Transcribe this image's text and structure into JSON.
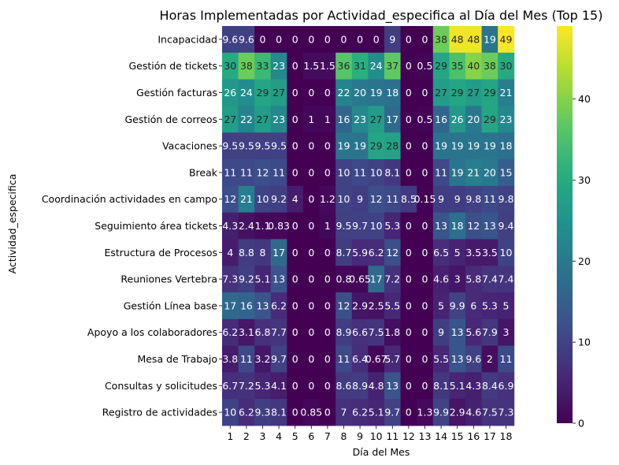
{
  "chart_data": {
    "type": "heatmap",
    "title": "Horas Implementadas por Actividad_especifica al Día del Mes (Top 15)",
    "xlabel": "Día del Mes",
    "ylabel": "Actividad_especifica",
    "colormap": "viridis",
    "vmin": 0,
    "vmax": 49,
    "colorbar_ticks": [
      "0",
      "10",
      "20",
      "30",
      "40"
    ],
    "colorbar_tick_values": [
      0,
      10,
      20,
      30,
      40
    ],
    "columns": [
      "1",
      "2",
      "3",
      "4",
      "5",
      "6",
      "7",
      "8",
      "9",
      "10",
      "11",
      "12",
      "13",
      "14",
      "15",
      "16",
      "17",
      "18"
    ],
    "rows": [
      "Incapacidad",
      "Gestión de tickets",
      "Gestión facturas",
      "Gestión de correos",
      "Vacaciones",
      "Break",
      "Coordinación actividades en campo",
      "Seguimiento área tickets",
      "Estructura de Procesos",
      "Reuniones Vertebra",
      "Gestión Línea base",
      "Apoyo a los colaboradores",
      "Mesa de Trabajo",
      "Consultas y solicitudes",
      "Registro de actividades"
    ],
    "values": [
      [
        9.6,
        9.6,
        0,
        0,
        0,
        0,
        0,
        0,
        0,
        0,
        9,
        0,
        0,
        38,
        48,
        48,
        19,
        49
      ],
      [
        30,
        38,
        33,
        23,
        0,
        1.5,
        1.5,
        36,
        31,
        24,
        37,
        0,
        0.5,
        29,
        35,
        40,
        38,
        30
      ],
      [
        26,
        24,
        29,
        27,
        0,
        0,
        0,
        22,
        20,
        19,
        18,
        0,
        0,
        27,
        29,
        27,
        29,
        21
      ],
      [
        27,
        22,
        27,
        23,
        0,
        1,
        1,
        16,
        23,
        27,
        17,
        0,
        0.5,
        16,
        26,
        20,
        29,
        23
      ],
      [
        9.5,
        9.5,
        9.5,
        9.5,
        0,
        0,
        0,
        19,
        19,
        29,
        28,
        0,
        0,
        19,
        19,
        19,
        19,
        18
      ],
      [
        11,
        11,
        12,
        11,
        0,
        0,
        0,
        10,
        11,
        10,
        8.1,
        0,
        0,
        11,
        19,
        21,
        20,
        15
      ],
      [
        12,
        21,
        10,
        9.2,
        4,
        0,
        1.2,
        10,
        9,
        12,
        11,
        8.5,
        0.15,
        9,
        9,
        9.8,
        11,
        9.8
      ],
      [
        4.3,
        2.4,
        1.1,
        0.83,
        0,
        0,
        1,
        9.5,
        9.7,
        10,
        5.3,
        0,
        0,
        13,
        18,
        12,
        13,
        9.4
      ],
      [
        4,
        8.8,
        8,
        17,
        0,
        0,
        0,
        8.7,
        5.9,
        6.2,
        12,
        0,
        0,
        6.5,
        5,
        3.5,
        3.5,
        10
      ],
      [
        7.3,
        9.2,
        5.1,
        13,
        0,
        0,
        0,
        0.8,
        0.65,
        17,
        7.2,
        0,
        0,
        4.6,
        3,
        5.8,
        7.4,
        7.4
      ],
      [
        17,
        16,
        13,
        6.2,
        0,
        0,
        0,
        12,
        2.9,
        2.5,
        5.5,
        0,
        0,
        5,
        9.9,
        6,
        5.3,
        5
      ],
      [
        6.2,
        3.1,
        6.8,
        7.7,
        0,
        0,
        0,
        8.9,
        6.6,
        7.5,
        1.8,
        0,
        0,
        9,
        13,
        5.6,
        7.9,
        3
      ],
      [
        3.8,
        11,
        3.2,
        9.7,
        0,
        0,
        0,
        11,
        6.4,
        0.67,
        5.7,
        0,
        0,
        5.5,
        13,
        9.6,
        2,
        11
      ],
      [
        6.7,
        7.2,
        5.3,
        4.1,
        0,
        0,
        0,
        8.6,
        8.9,
        4.8,
        13,
        0,
        0,
        8.1,
        5.1,
        4.3,
        8.4,
        6.9
      ],
      [
        10,
        6.2,
        9.3,
        8.1,
        0,
        0.85,
        0,
        7,
        6.2,
        5.1,
        9.7,
        0,
        1.3,
        9.9,
        2.9,
        4.6,
        7.5,
        7.3
      ]
    ],
    "cell_labels": [
      [
        "9.6",
        "9.6",
        "0",
        "0",
        "0",
        "0",
        "0",
        "0",
        "0",
        "0",
        "9",
        "0",
        "0",
        "38",
        "48",
        "48",
        "19",
        "49"
      ],
      [
        "30",
        "38",
        "33",
        "23",
        "0",
        "1.5",
        "1.5",
        "36",
        "31",
        "24",
        "37",
        "0",
        "0.5",
        "29",
        "35",
        "40",
        "38",
        "30"
      ],
      [
        "26",
        "24",
        "29",
        "27",
        "0",
        "0",
        "0",
        "22",
        "20",
        "19",
        "18",
        "0",
        "0",
        "27",
        "29",
        "27",
        "29",
        "21"
      ],
      [
        "27",
        "22",
        "27",
        "23",
        "0",
        "1",
        "1",
        "16",
        "23",
        "27",
        "17",
        "0",
        "0.5",
        "16",
        "26",
        "20",
        "29",
        "23"
      ],
      [
        "9.5",
        "9.5",
        "9.5",
        "9.5",
        "0",
        "0",
        "0",
        "19",
        "19",
        "29",
        "28",
        "0",
        "0",
        "19",
        "19",
        "19",
        "19",
        "18"
      ],
      [
        "11",
        "11",
        "12",
        "11",
        "0",
        "0",
        "0",
        "10",
        "11",
        "10",
        "8.1",
        "0",
        "0",
        "11",
        "19",
        "21",
        "20",
        "15"
      ],
      [
        "12",
        "21",
        "10",
        "9.2",
        "4",
        "0",
        "1.2",
        "10",
        "9",
        "12",
        "11",
        "8.5",
        "0.15",
        "9",
        "9",
        "9.8",
        "11",
        "9.8"
      ],
      [
        "4.3",
        "2.4",
        "1.1",
        "0.83",
        "0",
        "0",
        "1",
        "9.5",
        "9.7",
        "10",
        "5.3",
        "0",
        "0",
        "13",
        "18",
        "12",
        "13",
        "9.4"
      ],
      [
        "4",
        "8.8",
        "8",
        "17",
        "0",
        "0",
        "0",
        "8.7",
        "5.9",
        "6.2",
        "12",
        "0",
        "0",
        "6.5",
        "5",
        "3.5",
        "3.5",
        "10"
      ],
      [
        "7.3",
        "9.2",
        "5.1",
        "13",
        "0",
        "0",
        "0",
        "0.8",
        "0.65",
        "17",
        "7.2",
        "0",
        "0",
        "4.6",
        "3",
        "5.8",
        "7.4",
        "7.4"
      ],
      [
        "17",
        "16",
        "13",
        "6.2",
        "0",
        "0",
        "0",
        "12",
        "2.9",
        "2.5",
        "5.5",
        "0",
        "0",
        "5",
        "9.9",
        "6",
        "5.3",
        "5"
      ],
      [
        "6.2",
        "3.1",
        "6.8",
        "7.7",
        "0",
        "0",
        "0",
        "8.9",
        "6.6",
        "7.5",
        "1.8",
        "0",
        "0",
        "9",
        "13",
        "5.6",
        "7.9",
        "3"
      ],
      [
        "3.8",
        "11",
        "3.2",
        "9.7",
        "0",
        "0",
        "0",
        "11",
        "6.4",
        "0.67",
        "5.7",
        "0",
        "0",
        "5.5",
        "13",
        "9.6",
        "2",
        "11"
      ],
      [
        "6.7",
        "7.2",
        "5.3",
        "4.1",
        "0",
        "0",
        "0",
        "8.6",
        "8.9",
        "4.8",
        "13",
        "0",
        "0",
        "8.1",
        "5.1",
        "4.3",
        "8.4",
        "6.9"
      ],
      [
        "10",
        "6.2",
        "9.3",
        "8.1",
        "0",
        "0.85",
        "0",
        "7",
        "6.2",
        "5.1",
        "9.7",
        "0",
        "1.3",
        "9.9",
        "2.9",
        "4.6",
        "7.5",
        "7.3"
      ]
    ]
  }
}
